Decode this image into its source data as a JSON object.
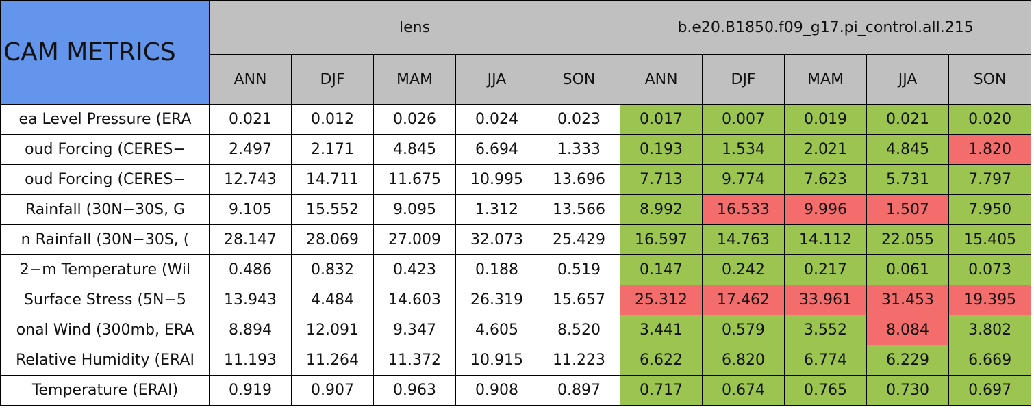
{
  "table": {
    "corner": "CAM METRICS",
    "groups": [
      "lens",
      "b.e20.B1850.f09_g17.pi_control.all.215"
    ],
    "seasons": [
      [
        "ANN",
        "DJF",
        "MAM",
        "JJA",
        "SON"
      ],
      [
        "ANN",
        "DJF",
        "MAM",
        "JJA",
        "SON"
      ]
    ],
    "rows": [
      {
        "label": "ea Level Pressure (ERA",
        "values": [
          "0.021",
          "0.012",
          "0.026",
          "0.024",
          "0.023",
          "0.017",
          "0.007",
          "0.019",
          "0.021",
          "0.020"
        ],
        "colors": [
          "#ffffff",
          "#ffffff",
          "#ffffff",
          "#ffffff",
          "#ffffff",
          "#9bc451",
          "#9bc451",
          "#9bc451",
          "#9bc451",
          "#9bc451"
        ]
      },
      {
        "label": "oud Forcing (CERES−",
        "values": [
          "2.497",
          "2.171",
          "4.845",
          "6.694",
          "1.333",
          "0.193",
          "1.534",
          "2.021",
          "4.845",
          "1.820"
        ],
        "colors": [
          "#ffffff",
          "#ffffff",
          "#ffffff",
          "#ffffff",
          "#ffffff",
          "#9bc451",
          "#9bc451",
          "#9bc451",
          "#9bc451",
          "#f46d6d"
        ]
      },
      {
        "label": "oud Forcing (CERES−",
        "values": [
          "12.743",
          "14.711",
          "11.675",
          "10.995",
          "13.696",
          "7.713",
          "9.774",
          "7.623",
          "5.731",
          "7.797"
        ],
        "colors": [
          "#ffffff",
          "#ffffff",
          "#ffffff",
          "#ffffff",
          "#ffffff",
          "#9bc451",
          "#9bc451",
          "#9bc451",
          "#9bc451",
          "#9bc451"
        ]
      },
      {
        "label": "Rainfall (30N−30S, G",
        "values": [
          "9.105",
          "15.552",
          "9.095",
          "1.312",
          "13.566",
          "8.992",
          "16.533",
          "9.996",
          "1.507",
          "7.950"
        ],
        "colors": [
          "#ffffff",
          "#ffffff",
          "#ffffff",
          "#ffffff",
          "#ffffff",
          "#9bc451",
          "#f46d6d",
          "#f46d6d",
          "#f46d6d",
          "#9bc451"
        ]
      },
      {
        "label": "n Rainfall (30N−30S, (",
        "values": [
          "28.147",
          "28.069",
          "27.009",
          "32.073",
          "25.429",
          "16.597",
          "14.763",
          "14.112",
          "22.055",
          "15.405"
        ],
        "colors": [
          "#ffffff",
          "#ffffff",
          "#ffffff",
          "#ffffff",
          "#ffffff",
          "#9bc451",
          "#9bc451",
          "#9bc451",
          "#9bc451",
          "#9bc451"
        ]
      },
      {
        "label": "2−m Temperature (Wil",
        "values": [
          "0.486",
          "0.832",
          "0.423",
          "0.188",
          "0.519",
          "0.147",
          "0.242",
          "0.217",
          "0.061",
          "0.073"
        ],
        "colors": [
          "#ffffff",
          "#ffffff",
          "#ffffff",
          "#ffffff",
          "#ffffff",
          "#9bc451",
          "#9bc451",
          "#9bc451",
          "#9bc451",
          "#9bc451"
        ]
      },
      {
        "label": "Surface Stress (5N−5",
        "values": [
          "13.943",
          "4.484",
          "14.603",
          "26.319",
          "15.657",
          "25.312",
          "17.462",
          "33.961",
          "31.453",
          "19.395"
        ],
        "colors": [
          "#ffffff",
          "#ffffff",
          "#ffffff",
          "#ffffff",
          "#ffffff",
          "#f46d6d",
          "#f46d6d",
          "#f46d6d",
          "#f46d6d",
          "#f46d6d"
        ]
      },
      {
        "label": "onal Wind (300mb, ERA",
        "values": [
          "8.894",
          "12.091",
          "9.347",
          "4.605",
          "8.520",
          "3.441",
          "0.579",
          "3.552",
          "8.084",
          "3.802"
        ],
        "colors": [
          "#ffffff",
          "#ffffff",
          "#ffffff",
          "#ffffff",
          "#ffffff",
          "#9bc451",
          "#9bc451",
          "#9bc451",
          "#f46d6d",
          "#9bc451"
        ]
      },
      {
        "label": "Relative Humidity (ERAI",
        "values": [
          "11.193",
          "11.264",
          "11.372",
          "10.915",
          "11.223",
          "6.622",
          "6.820",
          "6.774",
          "6.229",
          "6.669"
        ],
        "colors": [
          "#ffffff",
          "#ffffff",
          "#ffffff",
          "#ffffff",
          "#ffffff",
          "#9bc451",
          "#9bc451",
          "#9bc451",
          "#9bc451",
          "#9bc451"
        ]
      },
      {
        "label": "Temperature (ERAI)",
        "values": [
          "0.919",
          "0.907",
          "0.963",
          "0.908",
          "0.897",
          "0.717",
          "0.674",
          "0.765",
          "0.730",
          "0.697"
        ],
        "colors": [
          "#ffffff",
          "#ffffff",
          "#ffffff",
          "#ffffff",
          "#ffffff",
          "#9bc451",
          "#9bc451",
          "#9bc451",
          "#9bc451",
          "#9bc451"
        ]
      }
    ]
  }
}
